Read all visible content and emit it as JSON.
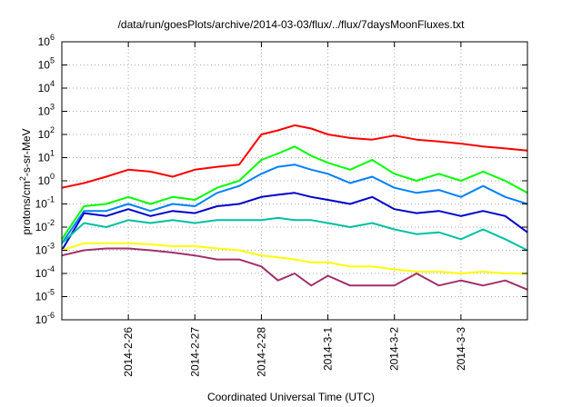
{
  "chart_data": {
    "type": "line",
    "title": "/data/run/goesPlots/archive/2014-03-03/flux/../flux/7daysMoonFluxes.txt",
    "xlabel": "Coordinated Universal Time (UTC)",
    "ylabel": "protons/cm^2-s-sr-MeV",
    "yscale": "log",
    "ylim": [
      1e-06,
      1000000.0
    ],
    "y_ticks": [
      {
        "base": "10",
        "exp": "-6"
      },
      {
        "base": "10",
        "exp": "-5"
      },
      {
        "base": "10",
        "exp": "-4"
      },
      {
        "base": "10",
        "exp": "-3"
      },
      {
        "base": "10",
        "exp": "-2"
      },
      {
        "base": "10",
        "exp": "-1"
      },
      {
        "base": "10",
        "exp": "0"
      },
      {
        "base": "10",
        "exp": "1"
      },
      {
        "base": "10",
        "exp": "2"
      },
      {
        "base": "10",
        "exp": "3"
      },
      {
        "base": "10",
        "exp": "4"
      },
      {
        "base": "10",
        "exp": "5"
      },
      {
        "base": "10",
        "exp": "6"
      }
    ],
    "xlim": [
      "2014-02-25T00:00",
      "2014-03-04T00:00"
    ],
    "x_ticks": [
      "2014-2-26",
      "2014-2-27",
      "2014-2-28",
      "2014-3-1",
      "2014-3-2",
      "2014-3-3"
    ],
    "grid": true,
    "series": [
      {
        "color": "#ff0000",
        "x": [
          "2014-02-25T00:00",
          "2014-02-25T08:00",
          "2014-02-25T16:00",
          "2014-02-26T00:00",
          "2014-02-26T08:00",
          "2014-02-26T16:00",
          "2014-02-27T00:00",
          "2014-02-27T08:00",
          "2014-02-27T16:00",
          "2014-02-28T00:00",
          "2014-02-28T06:00",
          "2014-02-28T12:00",
          "2014-02-28T18:00",
          "2014-03-01T00:00",
          "2014-03-01T08:00",
          "2014-03-01T16:00",
          "2014-03-02T00:00",
          "2014-03-02T08:00",
          "2014-03-02T16:00",
          "2014-03-03T00:00",
          "2014-03-03T08:00",
          "2014-03-03T16:00",
          "2014-03-04T00:00"
        ],
        "values": [
          0.5,
          0.8,
          1.5,
          3,
          2.5,
          1.5,
          3,
          4,
          5,
          100,
          150,
          250,
          180,
          100,
          70,
          60,
          90,
          60,
          50,
          40,
          30,
          25,
          20
        ]
      },
      {
        "color": "#00ff00",
        "x": [
          "2014-02-25T00:00",
          "2014-02-25T08:00",
          "2014-02-25T16:00",
          "2014-02-26T00:00",
          "2014-02-26T08:00",
          "2014-02-26T16:00",
          "2014-02-27T00:00",
          "2014-02-27T08:00",
          "2014-02-27T16:00",
          "2014-02-28T00:00",
          "2014-02-28T06:00",
          "2014-02-28T12:00",
          "2014-02-28T18:00",
          "2014-03-01T00:00",
          "2014-03-01T08:00",
          "2014-03-01T16:00",
          "2014-03-02T00:00",
          "2014-03-02T08:00",
          "2014-03-02T16:00",
          "2014-03-03T00:00",
          "2014-03-03T08:00",
          "2014-03-03T16:00",
          "2014-03-04T00:00"
        ],
        "values": [
          0.003,
          0.08,
          0.1,
          0.2,
          0.1,
          0.2,
          0.15,
          0.5,
          1,
          8,
          15,
          30,
          12,
          6,
          3,
          8,
          2,
          1,
          2,
          1,
          2.5,
          1,
          0.3
        ]
      },
      {
        "color": "#0080ff",
        "x": [
          "2014-02-25T00:00",
          "2014-02-25T08:00",
          "2014-02-25T16:00",
          "2014-02-26T00:00",
          "2014-02-26T08:00",
          "2014-02-26T16:00",
          "2014-02-27T00:00",
          "2014-02-27T08:00",
          "2014-02-27T16:00",
          "2014-02-28T00:00",
          "2014-02-28T06:00",
          "2014-02-28T12:00",
          "2014-02-28T18:00",
          "2014-03-01T00:00",
          "2014-03-01T08:00",
          "2014-03-01T16:00",
          "2014-03-02T00:00",
          "2014-03-02T08:00",
          "2014-03-02T16:00",
          "2014-03-03T00:00",
          "2014-03-03T08:00",
          "2014-03-03T16:00",
          "2014-03-04T00:00"
        ],
        "values": [
          0.002,
          0.05,
          0.05,
          0.1,
          0.05,
          0.1,
          0.08,
          0.3,
          0.6,
          2,
          4,
          5,
          3,
          2,
          0.8,
          1.5,
          0.5,
          0.3,
          0.4,
          0.2,
          0.6,
          0.2,
          0.1
        ]
      },
      {
        "color": "#0000cc",
        "x": [
          "2014-02-25T00:00",
          "2014-02-25T08:00",
          "2014-02-25T16:00",
          "2014-02-26T00:00",
          "2014-02-26T08:00",
          "2014-02-26T16:00",
          "2014-02-27T00:00",
          "2014-02-27T08:00",
          "2014-02-27T16:00",
          "2014-02-28T00:00",
          "2014-02-28T06:00",
          "2014-02-28T12:00",
          "2014-02-28T18:00",
          "2014-03-01T00:00",
          "2014-03-01T08:00",
          "2014-03-01T16:00",
          "2014-03-02T00:00",
          "2014-03-02T08:00",
          "2014-03-02T16:00",
          "2014-03-03T00:00",
          "2014-03-03T08:00",
          "2014-03-03T16:00",
          "2014-03-04T00:00"
        ],
        "values": [
          0.001,
          0.04,
          0.03,
          0.06,
          0.03,
          0.05,
          0.04,
          0.08,
          0.1,
          0.2,
          0.25,
          0.3,
          0.2,
          0.15,
          0.1,
          0.2,
          0.06,
          0.04,
          0.05,
          0.03,
          0.05,
          0.03,
          0.006
        ]
      },
      {
        "color": "#00c0a0",
        "x": [
          "2014-02-25T00:00",
          "2014-02-25T08:00",
          "2014-02-25T16:00",
          "2014-02-26T00:00",
          "2014-02-26T08:00",
          "2014-02-26T16:00",
          "2014-02-27T00:00",
          "2014-02-27T08:00",
          "2014-02-27T16:00",
          "2014-02-28T00:00",
          "2014-02-28T06:00",
          "2014-02-28T12:00",
          "2014-02-28T18:00",
          "2014-03-01T00:00",
          "2014-03-01T08:00",
          "2014-03-01T16:00",
          "2014-03-02T00:00",
          "2014-03-02T08:00",
          "2014-03-02T16:00",
          "2014-03-03T00:00",
          "2014-03-03T08:00",
          "2014-03-03T16:00",
          "2014-03-04T00:00"
        ],
        "values": [
          0.002,
          0.015,
          0.01,
          0.02,
          0.015,
          0.02,
          0.015,
          0.02,
          0.02,
          0.02,
          0.025,
          0.02,
          0.02,
          0.015,
          0.01,
          0.015,
          0.008,
          0.005,
          0.006,
          0.003,
          0.008,
          0.003,
          0.001
        ]
      },
      {
        "color": "#ffff00",
        "x": [
          "2014-02-25T00:00",
          "2014-02-25T08:00",
          "2014-02-25T16:00",
          "2014-02-26T00:00",
          "2014-02-26T08:00",
          "2014-02-26T16:00",
          "2014-02-27T00:00",
          "2014-02-27T08:00",
          "2014-02-27T16:00",
          "2014-02-28T00:00",
          "2014-02-28T06:00",
          "2014-02-28T12:00",
          "2014-02-28T18:00",
          "2014-03-01T00:00",
          "2014-03-01T08:00",
          "2014-03-01T16:00",
          "2014-03-02T00:00",
          "2014-03-02T08:00",
          "2014-03-02T16:00",
          "2014-03-03T00:00",
          "2014-03-03T08:00",
          "2014-03-03T16:00",
          "2014-03-04T00:00"
        ],
        "values": [
          0.001,
          0.002,
          0.002,
          0.002,
          0.0018,
          0.0015,
          0.0015,
          0.0012,
          0.001,
          0.0006,
          0.0005,
          0.0004,
          0.0003,
          0.0003,
          0.0002,
          0.0002,
          0.00015,
          0.00012,
          0.00012,
          0.0001,
          0.00012,
          0.0001,
          0.0001
        ]
      },
      {
        "color": "#a0306a",
        "x": [
          "2014-02-25T00:00",
          "2014-02-25T08:00",
          "2014-02-25T16:00",
          "2014-02-26T00:00",
          "2014-02-26T08:00",
          "2014-02-26T16:00",
          "2014-02-27T00:00",
          "2014-02-27T08:00",
          "2014-02-27T16:00",
          "2014-02-28T00:00",
          "2014-02-28T06:00",
          "2014-02-28T12:00",
          "2014-02-28T18:00",
          "2014-03-01T00:00",
          "2014-03-01T08:00",
          "2014-03-01T16:00",
          "2014-03-02T00:00",
          "2014-03-02T08:00",
          "2014-03-02T16:00",
          "2014-03-03T00:00",
          "2014-03-03T08:00",
          "2014-03-03T16:00",
          "2014-03-04T00:00"
        ],
        "values": [
          0.0006,
          0.001,
          0.0012,
          0.0012,
          0.001,
          0.0008,
          0.0006,
          0.0004,
          0.0004,
          0.0002,
          5e-05,
          0.0001,
          3e-05,
          8e-05,
          3e-05,
          3e-05,
          3e-05,
          0.0001,
          3e-05,
          5e-05,
          3e-05,
          5e-05,
          2e-05
        ]
      }
    ]
  }
}
